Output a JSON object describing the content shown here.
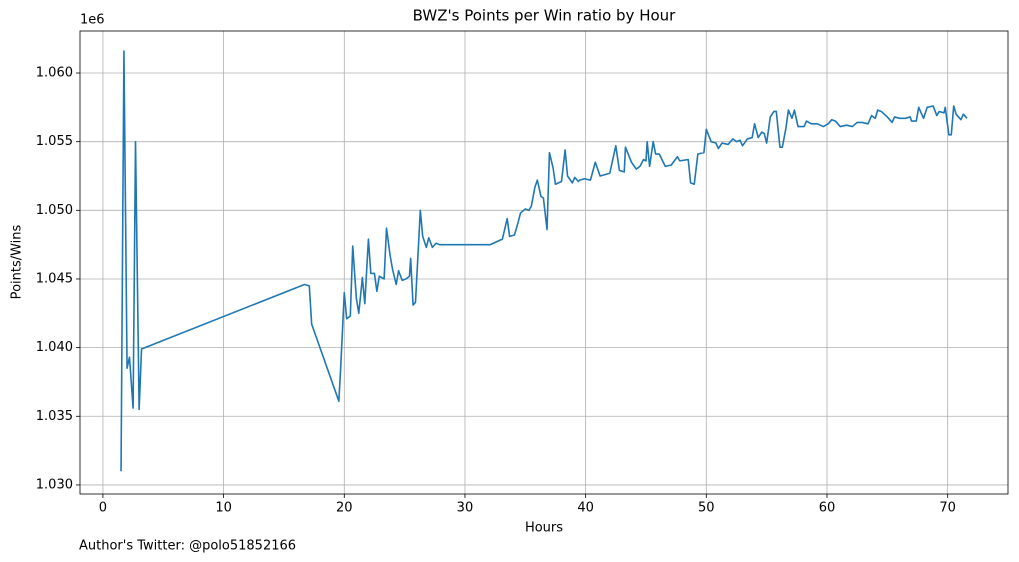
{
  "chart_data": {
    "type": "line",
    "title": "BWZ's Points per Win ratio by Hour",
    "xlabel": "Hours",
    "ylabel": "Points/Wins",
    "y_offset": "1e6",
    "annotation": "Author's Twitter: @polo51852166",
    "grid": true,
    "xlim": [
      -1.9,
      75
    ],
    "ylim": [
      1.02934,
      1.06306
    ],
    "xticks": [
      0,
      10,
      20,
      30,
      40,
      50,
      60,
      70
    ],
    "yticks": [
      {
        "value": 1.03,
        "label": "1.030"
      },
      {
        "value": 1.035,
        "label": "1.035"
      },
      {
        "value": 1.04,
        "label": "1.040"
      },
      {
        "value": 1.045,
        "label": "1.045"
      },
      {
        "value": 1.05,
        "label": "1.050"
      },
      {
        "value": 1.055,
        "label": "1.055"
      },
      {
        "value": 1.06,
        "label": "1.060"
      }
    ],
    "x": [
      1.5,
      1.74,
      2.0,
      2.2,
      2.5,
      2.7,
      3.0,
      3.2,
      16.7,
      17.1,
      17.3,
      19.55,
      19.7,
      20.0,
      20.2,
      20.5,
      20.7,
      21.0,
      21.2,
      21.5,
      21.7,
      22.0,
      22.2,
      22.5,
      22.7,
      22.9,
      23.3,
      23.5,
      23.8,
      24.0,
      24.3,
      24.5,
      24.8,
      25.1,
      25.4,
      25.5,
      25.7,
      25.9,
      26.3,
      26.5,
      26.8,
      27.0,
      27.3,
      27.6,
      27.9,
      32.1,
      33.1,
      33.5,
      33.7,
      34.1,
      34.4,
      34.6,
      35.0,
      35.3,
      35.5,
      35.8,
      36.0,
      36.3,
      36.5,
      36.8,
      37.0,
      37.3,
      37.5,
      38.0,
      38.3,
      38.5,
      38.9,
      39.1,
      39.4,
      39.5,
      39.9,
      40.4,
      40.8,
      41.2,
      42.0,
      42.5,
      42.8,
      43.2,
      43.3,
      43.8,
      44.2,
      44.5,
      44.8,
      45.0,
      45.1,
      45.3,
      45.6,
      45.8,
      46.1,
      46.6,
      47.1,
      47.6,
      47.8,
      48.5,
      48.7,
      49.0,
      49.3,
      49.8,
      50.0,
      50.4,
      50.8,
      51.0,
      51.3,
      51.8,
      52.2,
      52.5,
      52.8,
      53.0,
      53.4,
      53.8,
      54.0,
      54.3,
      54.6,
      54.8,
      55.0,
      55.3,
      55.6,
      55.8,
      56.1,
      56.3,
      56.6,
      56.8,
      57.1,
      57.3,
      57.6,
      58.1,
      58.3,
      58.7,
      59.2,
      59.7,
      60.1,
      60.4,
      60.7,
      61.1,
      61.6,
      62.1,
      62.5,
      62.9,
      63.4,
      63.7,
      64.0,
      64.2,
      64.5,
      65.0,
      65.4,
      65.6,
      66.0,
      66.5,
      66.9,
      67.0,
      67.4,
      67.6,
      68.0,
      68.3,
      68.8,
      69.1,
      69.3,
      69.7,
      69.8,
      70.1,
      70.3,
      70.5,
      70.7,
      71.1,
      71.3,
      71.6
    ],
    "series": [
      {
        "color": "#1f77b4",
        "values": [
          1.031,
          1.0616,
          1.0385,
          1.0393,
          1.0356,
          1.055,
          1.0355,
          1.0399,
          1.0446,
          1.0445,
          1.0417,
          1.0361,
          1.0385,
          1.044,
          1.0421,
          1.0423,
          1.0474,
          1.0436,
          1.0425,
          1.0451,
          1.0432,
          1.0479,
          1.0454,
          1.0454,
          1.0441,
          1.0452,
          1.045,
          1.0487,
          1.0467,
          1.0457,
          1.0446,
          1.0456,
          1.0449,
          1.045,
          1.0452,
          1.0465,
          1.0431,
          1.0433,
          1.05,
          1.0481,
          1.0473,
          1.048,
          1.0473,
          1.0476,
          1.0475,
          1.0475,
          1.0479,
          1.0494,
          1.0481,
          1.0482,
          1.0491,
          1.0498,
          1.0501,
          1.05,
          1.0503,
          1.0517,
          1.0522,
          1.051,
          1.0509,
          1.0486,
          1.0542,
          1.0531,
          1.0519,
          1.0521,
          1.0544,
          1.0525,
          1.052,
          1.0524,
          1.0521,
          1.0522,
          1.0523,
          1.0522,
          1.0535,
          1.0525,
          1.0527,
          1.0547,
          1.0529,
          1.0528,
          1.0546,
          1.0535,
          1.053,
          1.0532,
          1.0537,
          1.0536,
          1.055,
          1.0532,
          1.055,
          1.0541,
          1.0541,
          1.0532,
          1.0533,
          1.0539,
          1.0536,
          1.0537,
          1.052,
          1.0519,
          1.0541,
          1.0542,
          1.0559,
          1.055,
          1.0549,
          1.0545,
          1.0549,
          1.0548,
          1.0552,
          1.055,
          1.0551,
          1.0547,
          1.0552,
          1.0553,
          1.0563,
          1.0553,
          1.0557,
          1.0556,
          1.0549,
          1.0568,
          1.0572,
          1.0572,
          1.0546,
          1.0546,
          1.056,
          1.0573,
          1.0567,
          1.0573,
          1.0561,
          1.0561,
          1.0565,
          1.0563,
          1.0563,
          1.0561,
          1.0563,
          1.0566,
          1.0565,
          1.0561,
          1.0562,
          1.0561,
          1.0564,
          1.0564,
          1.0563,
          1.0569,
          1.0567,
          1.0573,
          1.0572,
          1.0568,
          1.0564,
          1.0568,
          1.0567,
          1.0567,
          1.0568,
          1.0565,
          1.0565,
          1.0575,
          1.0567,
          1.0575,
          1.0576,
          1.0569,
          1.0572,
          1.0571,
          1.0575,
          1.0555,
          1.0555,
          1.0576,
          1.057,
          1.0566,
          1.057,
          1.0567
        ]
      }
    ]
  }
}
